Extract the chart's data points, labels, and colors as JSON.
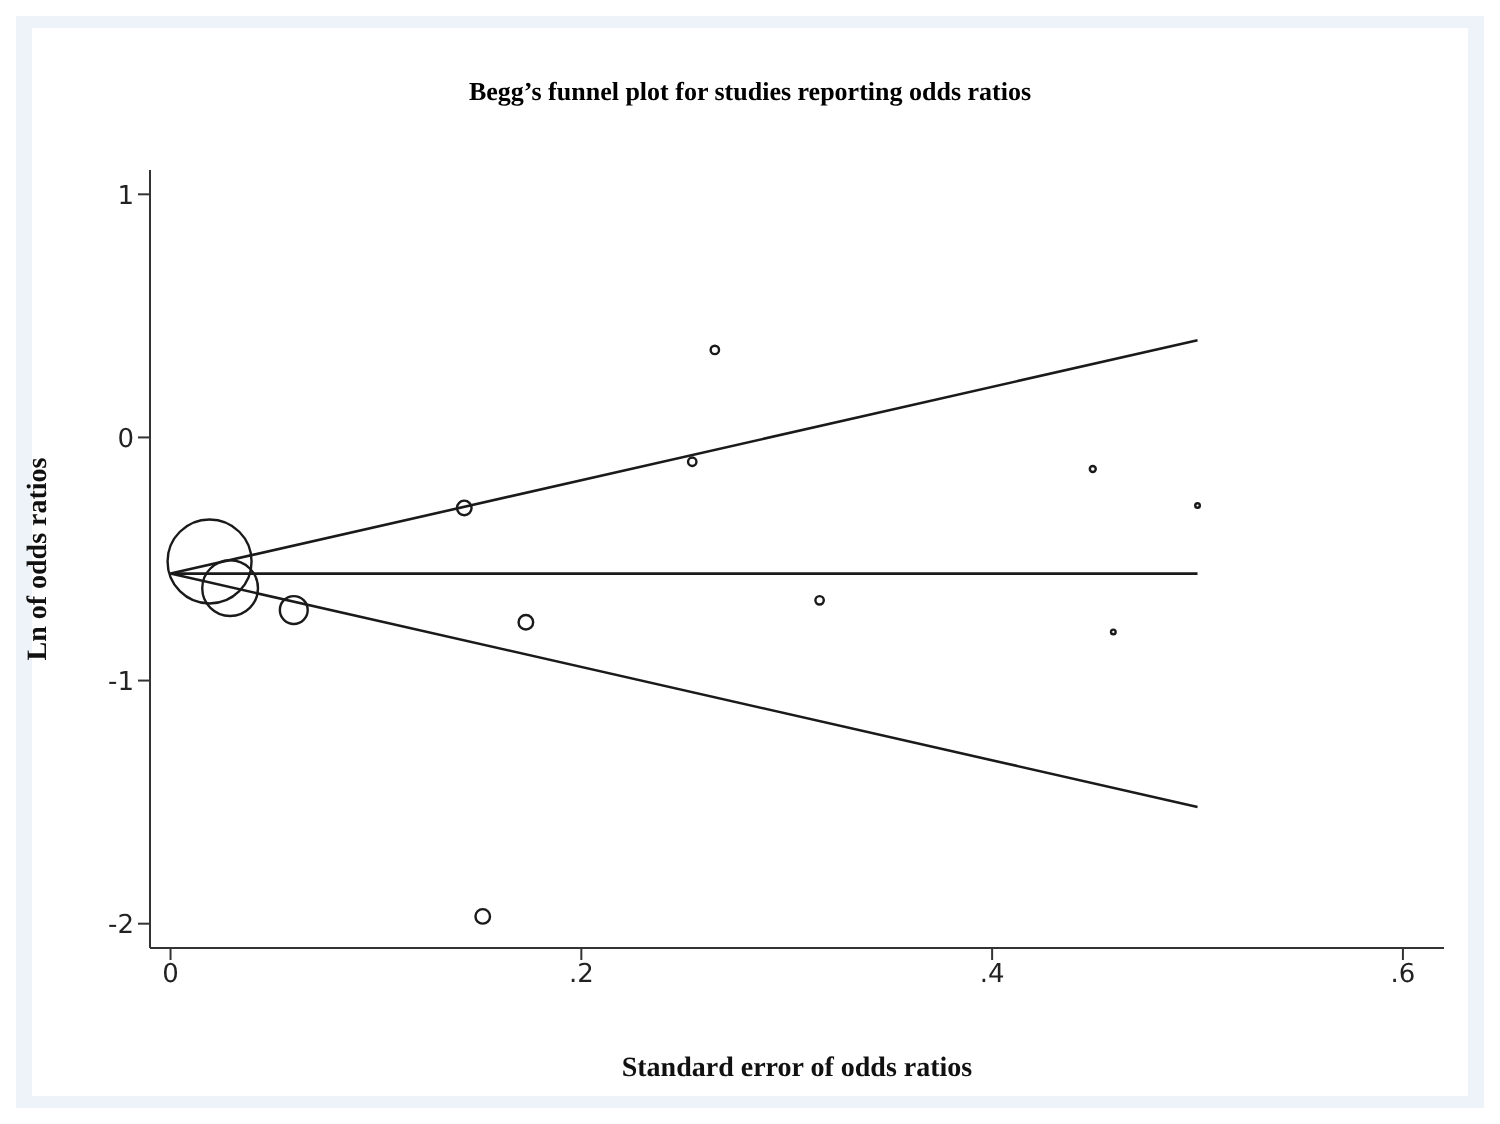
{
  "chart_data": {
    "type": "bubble",
    "title": "Begg’s funnel plot for studies reporting odds ratios",
    "xlabel": "Standard error of odds ratios",
    "ylabel": "Ln of odds ratios",
    "xlim": [
      -0.01,
      0.62
    ],
    "xticks": [
      {
        "value": 0,
        "label": "0"
      },
      {
        "value": 0.2,
        "label": ".2"
      },
      {
        "value": 0.4,
        "label": ".4"
      },
      {
        "value": 0.6,
        "label": ".6"
      }
    ],
    "ylim": [
      -2.1,
      1.1
    ],
    "yticks": [
      -2,
      -1,
      0,
      1
    ],
    "series": [
      {
        "type": "bubble",
        "color": "#1a1a1a",
        "x": [
          0.019,
          0.029,
          0.06,
          0.143,
          0.173,
          0.152,
          0.265,
          0.254,
          0.316,
          0.449,
          0.5,
          0.459
        ],
        "values": [
          -0.51,
          -0.62,
          -0.71,
          -0.29,
          -0.76,
          -1.97,
          0.36,
          -0.1,
          -0.67,
          -0.13,
          -0.28,
          -0.8
        ],
        "sizes": [
          1,
          0.44,
          0.11,
          0.03,
          0.03,
          0.03,
          0.01,
          0.01,
          0.01,
          0.005,
          0.003,
          0.003
        ]
      },
      {
        "type": "line",
        "color": "#1a1a1a",
        "x": [
          0,
          0.5
        ],
        "values": [
          -0.56,
          0.4
        ]
      },
      {
        "type": "line",
        "color": "#1a1a1a",
        "x": [
          0,
          0.5
        ],
        "values": [
          -0.56,
          -0.56
        ]
      },
      {
        "type": "line",
        "color": "#1a1a1a",
        "x": [
          0,
          0.5
        ],
        "values": [
          -0.56,
          -1.52
        ]
      }
    ]
  }
}
